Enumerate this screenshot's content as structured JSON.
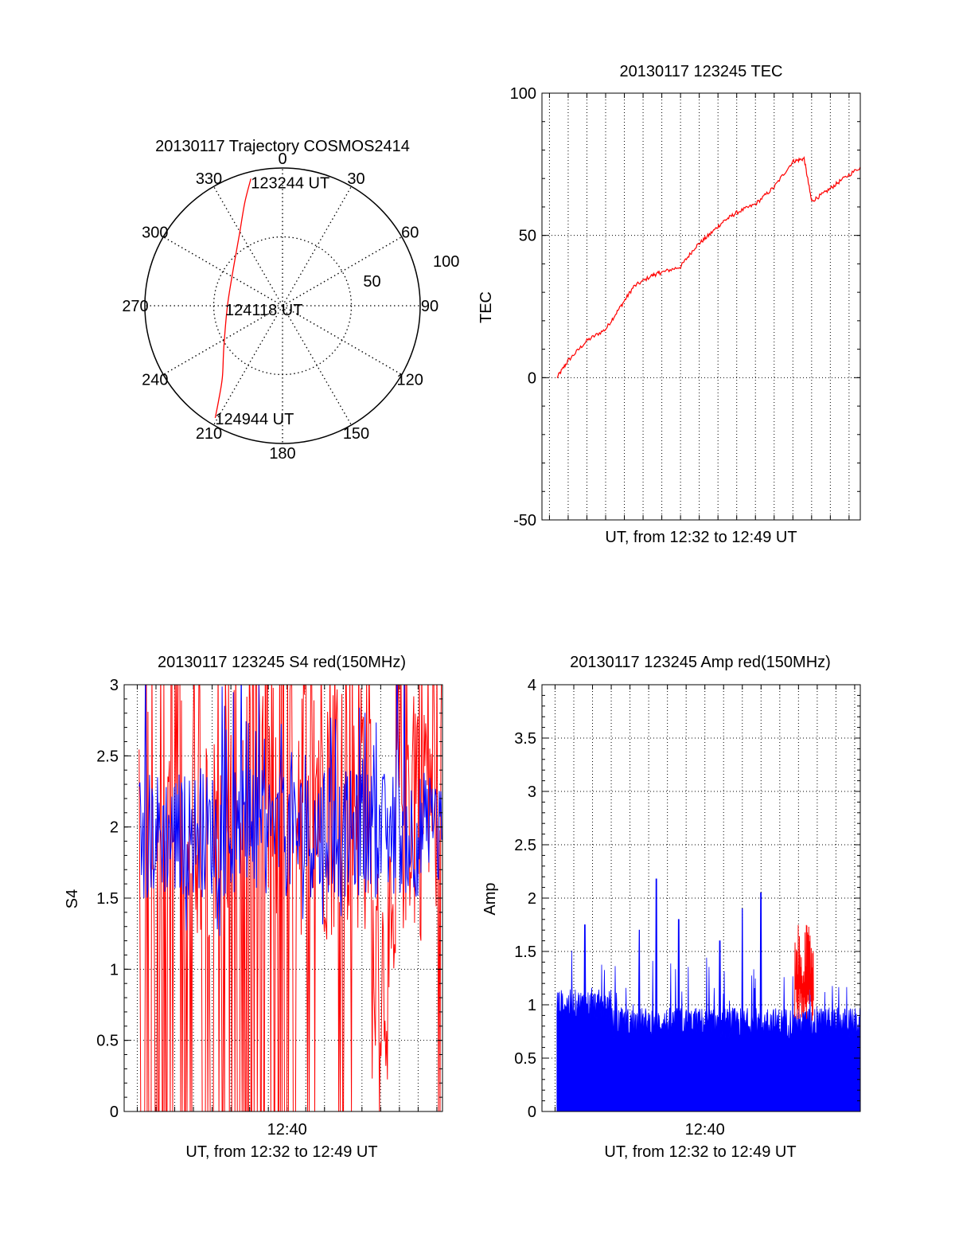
{
  "chart_data": [
    {
      "id": "trajectory",
      "type": "polar",
      "title": "20130117 Trajectory COSMOS2414",
      "angle_labels": [
        "0",
        "30",
        "60",
        "90",
        "120",
        "150",
        "180",
        "210",
        "240",
        "270",
        "300",
        "330"
      ],
      "angles": [
        0,
        30,
        60,
        90,
        120,
        150,
        180,
        210,
        240,
        270,
        300,
        330
      ],
      "radius_labels": [
        "50",
        "100"
      ],
      "radius_values": [
        50,
        100
      ],
      "rmax": 100,
      "colors": {
        "track": "#ff0000",
        "frame": "#000000"
      },
      "track": [
        {
          "az": 346,
          "zd": 95
        },
        {
          "az": 340,
          "zd": 80
        },
        {
          "az": 330,
          "zd": 62
        },
        {
          "az": 310,
          "zd": 46
        },
        {
          "az": 270,
          "zd": 40
        },
        {
          "az": 235,
          "zd": 52
        },
        {
          "az": 220,
          "zd": 68
        },
        {
          "az": 214,
          "zd": 83
        },
        {
          "az": 211,
          "zd": 95
        }
      ],
      "annotations": [
        {
          "text": "123244 UT",
          "az": 346,
          "zd": 95
        },
        {
          "text": "124118 UT",
          "az": 0,
          "zd": 0
        },
        {
          "text": "124944 UT",
          "az": 211,
          "zd": 95
        }
      ]
    },
    {
      "id": "tec",
      "type": "line",
      "title": "20130117 123245 TEC",
      "xlabel": "UT, from 12:32 to 12:49 UT",
      "ylabel": "TEC",
      "ylim": [
        -50,
        100
      ],
      "yticks": [
        -50,
        0,
        50,
        100
      ],
      "xlim_minutes": [
        12.6,
        29.6
      ],
      "grid": true,
      "series": [
        {
          "color": "#ff0000",
          "x": [
            13.4,
            14,
            15,
            16,
            16.8,
            17.5,
            18.5,
            19,
            20,
            20.8,
            21.5,
            22.3,
            23,
            24,
            25,
            26,
            26.6,
            27,
            27.7,
            28.5,
            29.6
          ],
          "y": [
            0,
            6,
            13,
            17,
            25,
            32,
            36,
            37,
            39,
            46,
            50,
            55,
            58,
            61,
            67,
            76,
            77,
            62,
            65,
            69,
            74
          ]
        }
      ]
    },
    {
      "id": "s4",
      "type": "line",
      "title": "20130117 123245 S4 red(150MHz)",
      "xlabel": "UT, from 12:32 to 12:49 UT",
      "ylabel": "S4",
      "ylim": [
        0,
        3
      ],
      "yticks": [
        0,
        0.5,
        1,
        1.5,
        2,
        2.5,
        3
      ],
      "ytick_labels": [
        "0",
        "0.5",
        "1",
        "1.5",
        "2",
        "2.5",
        "3"
      ],
      "xtick_labels": [
        "12:40"
      ],
      "xticks_minutes": [
        8
      ],
      "xlim_minutes": [
        -0.7,
        16.3
      ],
      "data_start_minutes": 0.1,
      "grid": true,
      "series": [
        {
          "color": "#ff0000",
          "kind": "noise",
          "base": 1.9,
          "spread": 1.2,
          "clip": [
            0,
            3
          ],
          "zero_drops": true
        },
        {
          "color": "#0000ff",
          "kind": "noise",
          "base": 1.95,
          "spread": 0.45,
          "clip": [
            0.9,
            3
          ]
        }
      ]
    },
    {
      "id": "amp",
      "type": "area",
      "title": "20130117 123245 Amp red(150MHz)",
      "xlabel": "UT, from 12:32 to 12:49 UT",
      "ylabel": "Amp",
      "ylim": [
        0,
        4
      ],
      "yticks": [
        0,
        0.5,
        1,
        1.5,
        2,
        2.5,
        3,
        3.5,
        4
      ],
      "ytick_labels": [
        "0",
        "0.5",
        "1",
        "1.5",
        "2",
        "2.5",
        "3",
        "3.5",
        "4"
      ],
      "xtick_labels": [
        "12:40"
      ],
      "xticks_minutes": [
        8
      ],
      "xlim_minutes": [
        -0.7,
        16.3
      ],
      "data_start_minutes": 0.1,
      "grid": true,
      "series": [
        {
          "color": "#ff0000",
          "kind": "spikes",
          "base": 0.85,
          "peak": 1.75,
          "window_minutes": [
            12.8,
            13.8
          ]
        },
        {
          "color": "#0000ff",
          "kind": "spikes",
          "base": 0.8,
          "peak": 2.18,
          "notable_peaks": [
            2.18,
            2.05,
            1.9,
            1.75
          ]
        }
      ]
    }
  ]
}
